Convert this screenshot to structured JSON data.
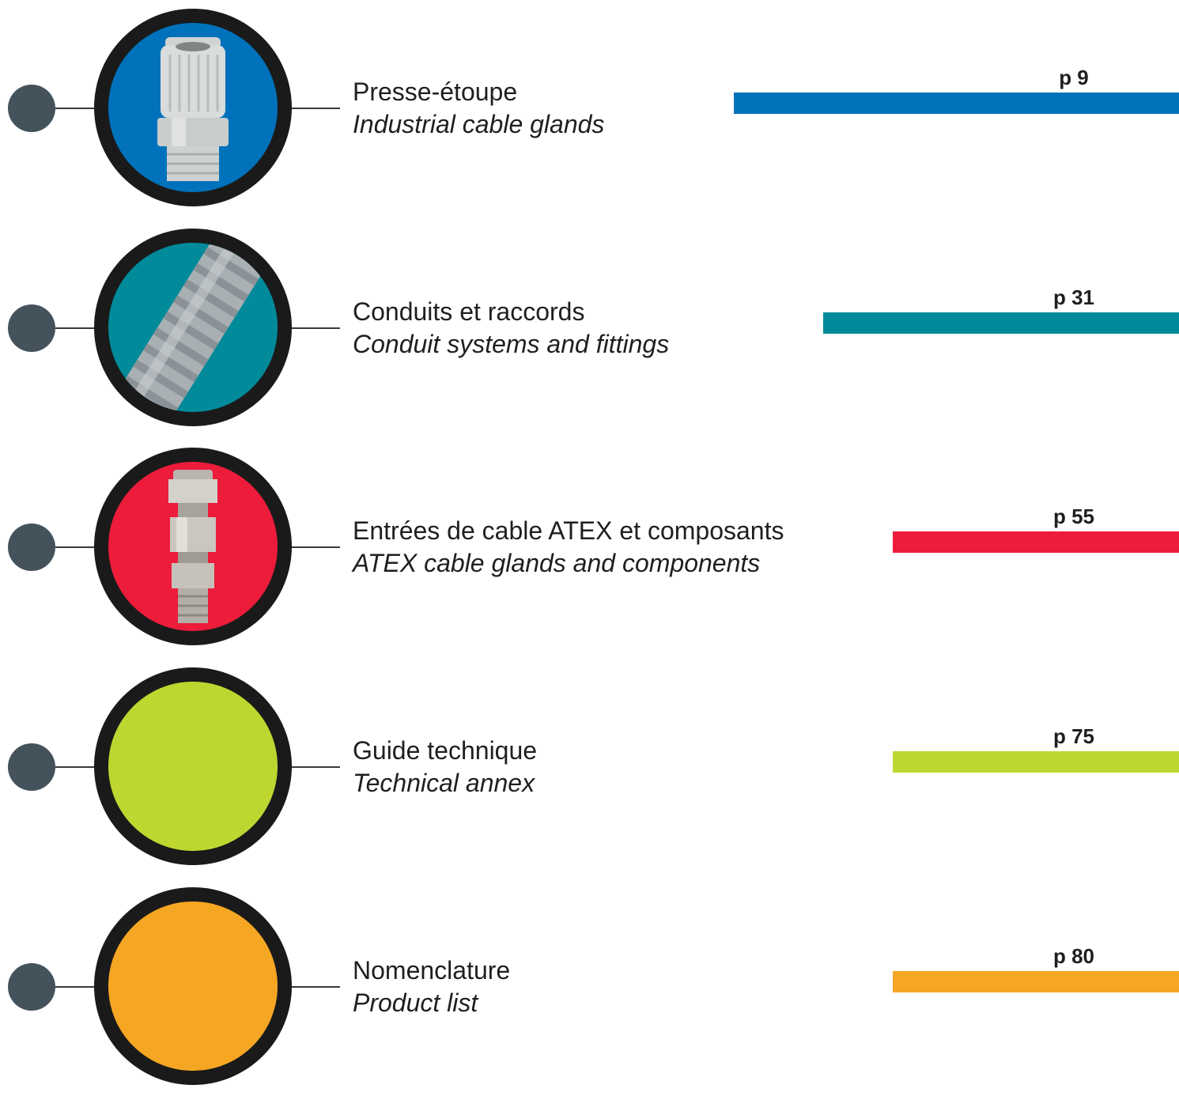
{
  "sections": [
    {
      "title_fr": "Presse-étoupe",
      "title_en": "Industrial cable glands",
      "page": "p 9",
      "color": "#0072bb",
      "image": "cable-gland-icon"
    },
    {
      "title_fr": "Conduits et raccords",
      "title_en": "Conduit systems and fittings",
      "page": "p 31",
      "color": "#008a9a",
      "image": "corrugated-conduit-icon"
    },
    {
      "title_fr": "Entrées de cable ATEX et composants",
      "title_en": "ATEX cable glands and components",
      "page": "p 55",
      "color": "#ec1c3a",
      "image": "atex-gland-icon"
    },
    {
      "title_fr": "Guide technique",
      "title_en": "Technical annex",
      "page": "p 75",
      "color": "#bed630",
      "image": ""
    },
    {
      "title_fr": "Nomenclature",
      "title_en": "Product list",
      "page": "p 80",
      "color": "#f5a623",
      "image": ""
    }
  ]
}
